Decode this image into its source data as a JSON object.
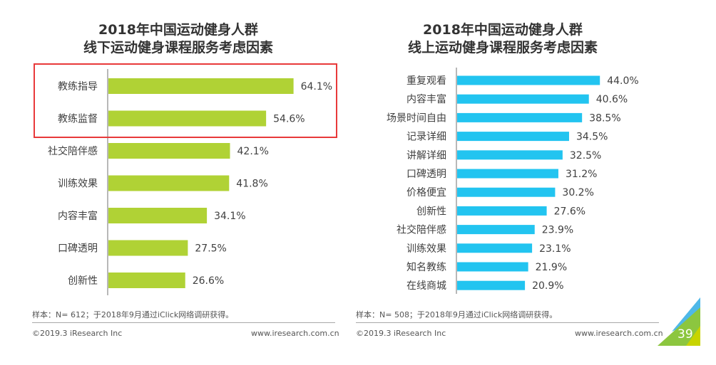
{
  "chart_data": [
    {
      "type": "bar",
      "orientation": "horizontal",
      "title": "2018年中国运动健身人群\n线下运动健身课程服务考虑因素",
      "title_lines": [
        "2018年中国运动健身人群",
        "线下运动健身课程服务考虑因素"
      ],
      "categories": [
        "教练指导",
        "教练监督",
        "社交陪伴感",
        "训练效果",
        "内容丰富",
        "口碑透明",
        "创新性"
      ],
      "values": [
        64.1,
        54.6,
        42.1,
        41.8,
        34.1,
        27.5,
        26.6
      ],
      "value_labels": [
        "64.1%",
        "54.6%",
        "42.1%",
        "41.8%",
        "34.1%",
        "27.5%",
        "26.6%"
      ],
      "unit": "%",
      "xlabel": "",
      "ylabel": "",
      "xlim": [
        0,
        70
      ],
      "grid": false,
      "legend": "none",
      "bar_color": "#b0d235",
      "highlighted_categories": [
        "教练指导",
        "教练监督"
      ],
      "highlight_color": "#e8393a",
      "note": "样本：N= 612；于2018年9月通过iClick网络调研获得。"
    },
    {
      "type": "bar",
      "orientation": "horizontal",
      "title": "2018年中国运动健身人群\n线上运动健身课程服务考虑因素",
      "title_lines": [
        "2018年中国运动健身人群",
        "线上运动健身课程服务考虑因素"
      ],
      "categories": [
        "重复观看",
        "内容丰富",
        "场景时间自由",
        "记录详细",
        "讲解详细",
        "口碑透明",
        "价格便宜",
        "创新性",
        "社交陪伴感",
        "训练效果",
        "知名教练",
        "在线商城"
      ],
      "values": [
        44.0,
        40.6,
        38.5,
        34.5,
        32.5,
        31.2,
        30.2,
        27.6,
        23.9,
        23.1,
        21.9,
        20.9
      ],
      "value_labels": [
        "44.0%",
        "40.6%",
        "38.5%",
        "34.5%",
        "32.5%",
        "31.2%",
        "30.2%",
        "27.6%",
        "23.9%",
        "23.1%",
        "21.9%",
        "20.9%"
      ],
      "unit": "%",
      "xlabel": "",
      "ylabel": "",
      "xlim": [
        0,
        50
      ],
      "grid": false,
      "legend": "none",
      "bar_color": "#22c4f0",
      "note": "样本：N= 508；于2018年9月通过iClick网络调研获得。"
    }
  ],
  "footer": {
    "copyright": "©2019.3  iResearch Inc",
    "website": "www.iresearch.com.cn",
    "page_number": "39"
  },
  "colors": {
    "title": "#333333",
    "text": "#404040",
    "axis": "#888888",
    "corner_green": "#8cc63f",
    "corner_lime": "#c8d400",
    "corner_blue": "#4fb8e8"
  }
}
